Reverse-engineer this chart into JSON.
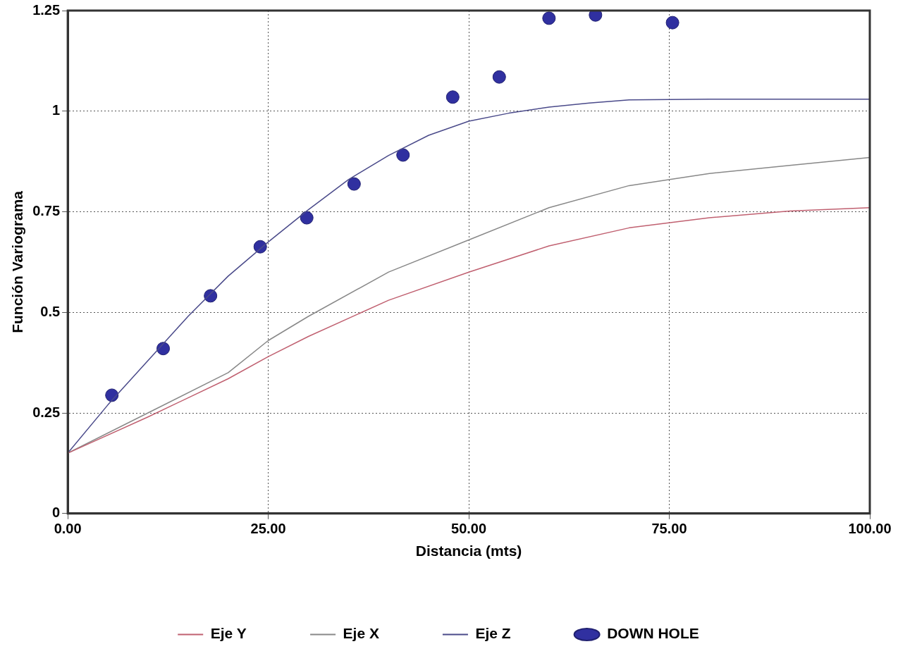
{
  "chart_data": {
    "type": "line",
    "xlabel": "Distancia (mts)",
    "ylabel": "Función Variograma",
    "xlim": [
      0,
      100
    ],
    "xticks": [
      {
        "value": 0,
        "label": "0.00"
      },
      {
        "value": 25,
        "label": "25.00"
      },
      {
        "value": 50,
        "label": "50.00"
      },
      {
        "value": 75,
        "label": "75.00"
      },
      {
        "value": 100,
        "label": "100.00"
      }
    ],
    "ylim": [
      0,
      1.25
    ],
    "yticks": [
      0,
      0.25,
      0.5,
      0.75,
      1,
      1.25
    ],
    "grid": true,
    "legend": "bottom",
    "line_style": "solid",
    "marker": "none",
    "series": [
      {
        "name": "Eje Y",
        "color": "#c06070",
        "x": [
          0,
          10,
          20,
          25,
          30,
          40,
          50,
          60,
          70,
          80,
          90,
          100
        ],
        "values": [
          0.15,
          0.24,
          0.335,
          0.39,
          0.44,
          0.53,
          0.6,
          0.665,
          0.71,
          0.735,
          0.752,
          0.76
        ]
      },
      {
        "name": "Eje X",
        "color": "#888888",
        "x": [
          0,
          10,
          20,
          25,
          30,
          40,
          50,
          60,
          70,
          80,
          90,
          100
        ],
        "values": [
          0.15,
          0.25,
          0.35,
          0.43,
          0.49,
          0.6,
          0.68,
          0.76,
          0.815,
          0.845,
          0.865,
          0.885
        ]
      },
      {
        "name": "Eje Z",
        "color": "#4a4a8a",
        "x": [
          0,
          5,
          10,
          15,
          20,
          25,
          30,
          35,
          40,
          45,
          50,
          55,
          60,
          65,
          70,
          80,
          100
        ],
        "values": [
          0.15,
          0.27,
          0.38,
          0.49,
          0.59,
          0.675,
          0.755,
          0.83,
          0.89,
          0.94,
          0.975,
          0.995,
          1.01,
          1.02,
          1.028,
          1.03,
          1.03
        ]
      },
      {
        "name": "DOWN HOLE",
        "type": "scatter",
        "marker": "circle",
        "color": "#3030a0",
        "x": [
          5.5,
          11.9,
          17.8,
          24,
          29.8,
          35.7,
          41.8,
          48,
          53.8,
          60,
          65.8,
          75.4
        ],
        "values": [
          0.294,
          0.41,
          0.541,
          0.663,
          0.735,
          0.819,
          0.891,
          1.035,
          1.085,
          1.231,
          1.239,
          1.22
        ]
      }
    ]
  }
}
